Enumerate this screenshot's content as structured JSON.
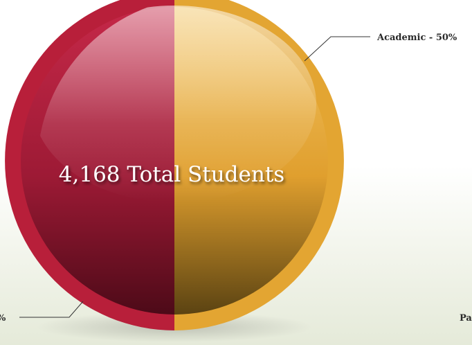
{
  "chart_data": {
    "type": "pie",
    "center_label": "4,168 Total Students",
    "slices": [
      {
        "label": "Academic - 50%",
        "value": 50,
        "color": "#e3a532"
      },
      {
        "label": "%",
        "value": 50,
        "color": "#b81f3a"
      }
    ],
    "extra_labels": [
      "Pa"
    ]
  }
}
